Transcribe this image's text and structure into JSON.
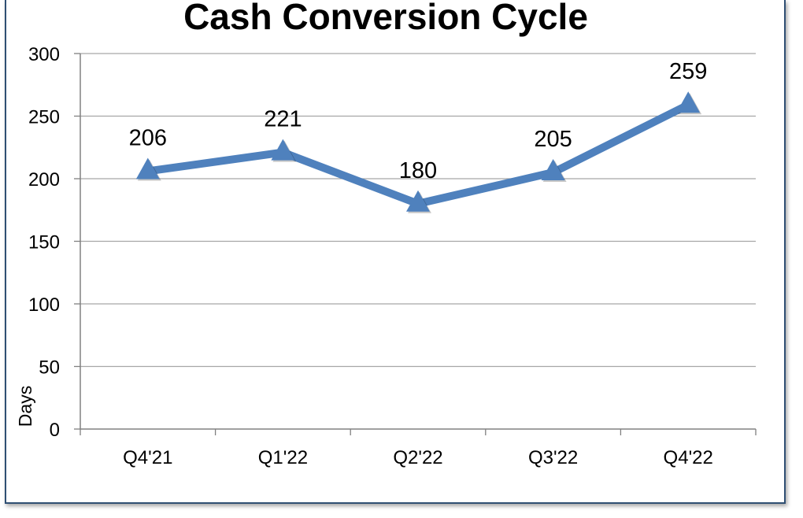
{
  "chart_data": {
    "type": "line",
    "title": "Cash Conversion Cycle",
    "xlabel": "",
    "ylabel": "Days",
    "categories": [
      "Q4'21",
      "Q1'22",
      "Q2'22",
      "Q3'22",
      "Q4'22"
    ],
    "series": [
      {
        "values": [
          206,
          221,
          180,
          205,
          259
        ],
        "color": "#4f81bd",
        "marker": "triangle"
      }
    ],
    "ylim": [
      0,
      300
    ],
    "yticks": [
      0,
      50,
      100,
      150,
      200,
      250,
      300
    ],
    "grid": true,
    "legend": "none",
    "frame_color": "#2f4f73"
  }
}
